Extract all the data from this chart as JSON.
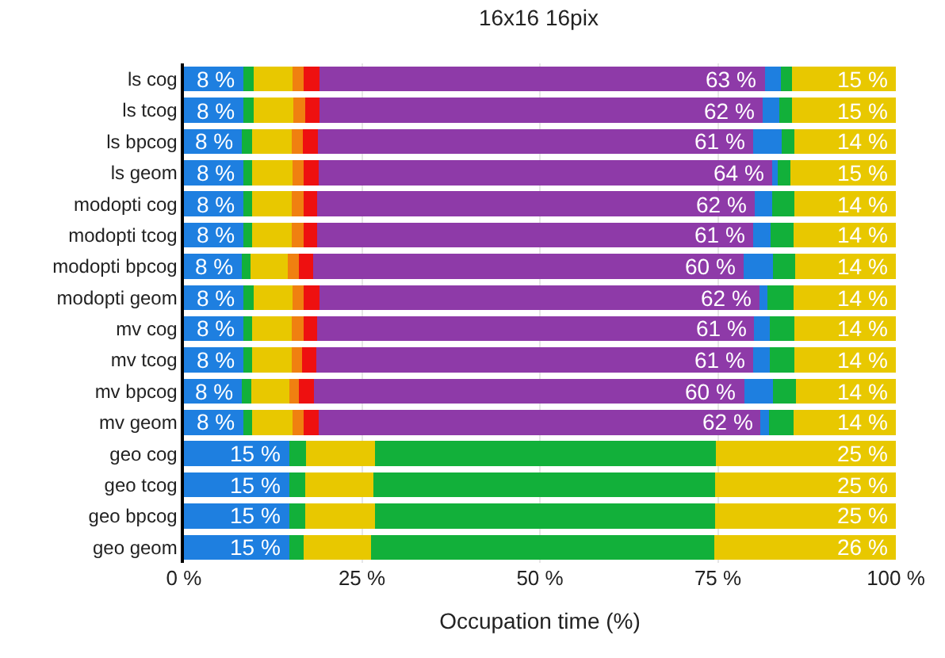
{
  "chart_data": {
    "type": "bar",
    "orientation": "horizontal",
    "stacked": true,
    "title": "16x16 16pix",
    "xlabel": "Occupation time (%)",
    "categories": [
      "ls cog",
      "ls tcog",
      "ls bpcog",
      "ls geom",
      "modopti cog",
      "modopti tcog",
      "modopti bpcog",
      "modopti geom",
      "mv cog",
      "mv tcog",
      "mv bpcog",
      "mv geom",
      "geo cog",
      "geo tcog",
      "geo bpcog",
      "geo geom"
    ],
    "xlim": [
      0,
      100
    ],
    "xticks": [
      {
        "value": 0,
        "label": "0 %"
      },
      {
        "value": 25,
        "label": "25 %"
      },
      {
        "value": 50,
        "label": "50 %"
      },
      {
        "value": 75,
        "label": "75 %"
      },
      {
        "value": 100,
        "label": "100 %"
      }
    ],
    "grid": "x",
    "series": [
      {
        "color": "#1e7fe0",
        "values": [
          8.3,
          8.3,
          8.1,
          8.3,
          8.3,
          8.3,
          8.1,
          8.3,
          8.3,
          8.3,
          8.1,
          8.3,
          14.8,
          14.8,
          14.8,
          14.8
        ],
        "value_labels": [
          "8 %",
          "8 %",
          "8 %",
          "8 %",
          "8 %",
          "8 %",
          "8 %",
          "8 %",
          "8 %",
          "8 %",
          "8 %",
          "8 %",
          "15 %",
          "15 %",
          "15 %",
          "15 %"
        ]
      },
      {
        "color": "#12b03a",
        "values": [
          1.5,
          1.5,
          1.5,
          1.3,
          1.3,
          1.3,
          1.3,
          1.5,
          1.3,
          1.3,
          1.4,
          1.3,
          2.3,
          2.2,
          2.2,
          2.0
        ]
      },
      {
        "color": "#e8c800",
        "values": [
          5.4,
          5.6,
          5.5,
          5.7,
          5.5,
          5.5,
          5.2,
          5.4,
          5.5,
          5.5,
          5.3,
          5.6,
          9.7,
          9.6,
          9.8,
          9.5
        ]
      },
      {
        "color": "#f08010",
        "values": [
          1.6,
          1.6,
          1.6,
          1.5,
          1.7,
          1.7,
          1.6,
          1.6,
          1.7,
          1.5,
          1.4,
          1.6,
          null,
          null,
          null,
          null
        ]
      },
      {
        "color": "#ee1010",
        "values": [
          2.2,
          2.0,
          2.1,
          2.1,
          1.9,
          1.9,
          2.0,
          2.2,
          1.9,
          2.0,
          2.1,
          2.1,
          null,
          null,
          null,
          null
        ]
      },
      {
        "color": "#8e3aa8",
        "values": [
          62.6,
          62.3,
          61.2,
          63.7,
          61.5,
          61.3,
          60.4,
          61.8,
          61.4,
          61.3,
          60.4,
          62.1,
          null,
          null,
          null,
          null
        ],
        "value_labels": [
          "63 %",
          "62 %",
          "61 %",
          "64 %",
          "62 %",
          "61 %",
          "60 %",
          "62 %",
          "61 %",
          "61 %",
          "60 %",
          "62 %",
          null,
          null,
          null,
          null
        ]
      },
      {
        "color": "#1e7fe0",
        "values": [
          2.3,
          2.3,
          4.0,
          0.8,
          2.4,
          2.4,
          4.1,
          1.2,
          2.2,
          2.4,
          4.0,
          1.2,
          null,
          null,
          null,
          null
        ]
      },
      {
        "color": "#12b03a",
        "values": [
          1.5,
          1.8,
          1.7,
          1.8,
          3.2,
          3.2,
          3.2,
          3.6,
          3.4,
          3.4,
          3.3,
          3.4,
          47.9,
          48.0,
          47.8,
          48.2
        ]
      },
      {
        "color": "#e8c800",
        "values": [
          14.6,
          14.6,
          14.3,
          14.8,
          14.2,
          14.4,
          14.1,
          14.4,
          14.3,
          14.3,
          14.0,
          14.4,
          25.3,
          25.4,
          25.4,
          25.5
        ],
        "value_labels": [
          "15 %",
          "15 %",
          "14 %",
          "15 %",
          "14 %",
          "14 %",
          "14 %",
          "14 %",
          "14 %",
          "14 %",
          "14 %",
          "14 %",
          "25 %",
          "25 %",
          "25 %",
          "26 %"
        ]
      }
    ]
  }
}
